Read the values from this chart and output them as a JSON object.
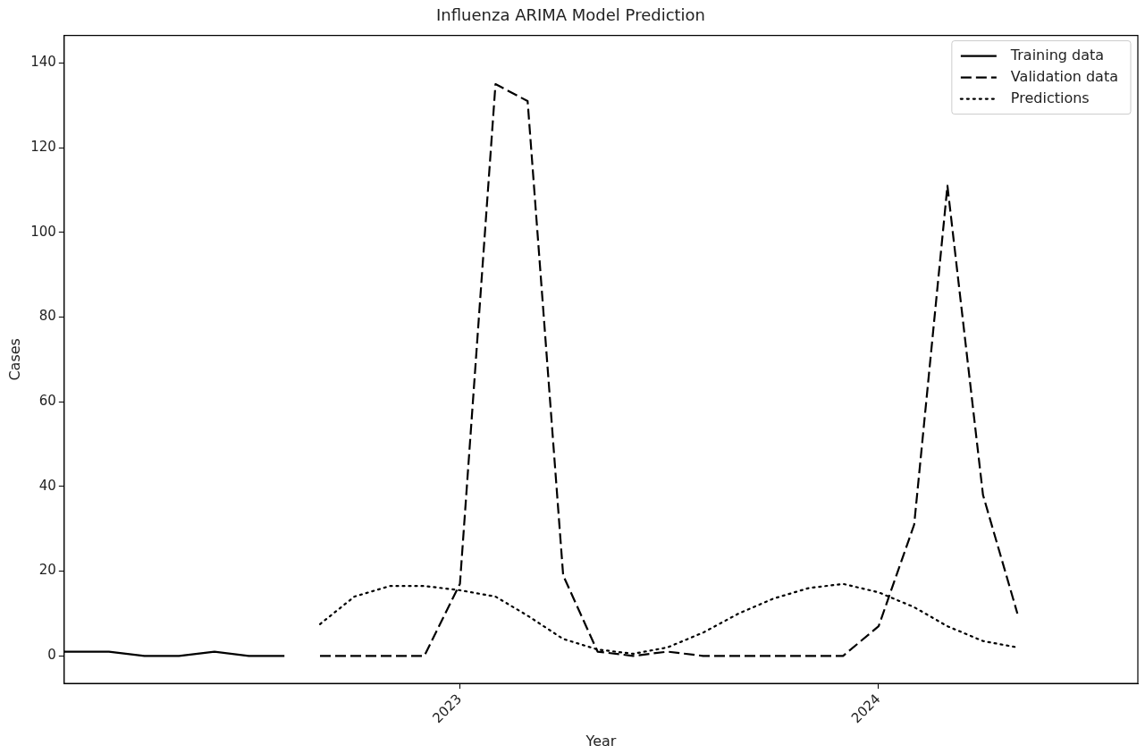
{
  "chart_data": {
    "type": "line",
    "title": "Influenza ARIMA Model Prediction",
    "xlabel": "Year",
    "ylabel": "Cases",
    "xlim": [
      "2022-01-21",
      "2024-08-14"
    ],
    "xticks": [
      {
        "value": "2023-01-01",
        "label": "2023"
      },
      {
        "value": "2024-01-01",
        "label": "2024"
      }
    ],
    "ylim": [
      -6.5,
      146.5
    ],
    "yticks": [
      0,
      20,
      40,
      60,
      80,
      100,
      120,
      140
    ],
    "grid": false,
    "legend": "top right",
    "marker": "none",
    "series": [
      {
        "name": "Training data",
        "color": "#000000",
        "line_style": "solid",
        "x": [
          "2022-01-21",
          "2022-02-01",
          "2022-03-01",
          "2022-04-01",
          "2022-05-01",
          "2022-06-01",
          "2022-07-01",
          "2022-08-01"
        ],
        "values": [
          1,
          1,
          1,
          0,
          0,
          1,
          0,
          0
        ]
      },
      {
        "name": "Validation data",
        "color": "#000000",
        "line_style": "dashed",
        "x": [
          "2022-09-01",
          "2022-10-01",
          "2022-11-01",
          "2022-12-01",
          "2023-01-01",
          "2023-02-01",
          "2023-03-01",
          "2023-04-01",
          "2023-05-01",
          "2023-06-01",
          "2023-07-01",
          "2023-08-01",
          "2023-09-01",
          "2023-10-01",
          "2023-11-01",
          "2023-12-01",
          "2024-01-01",
          "2024-02-01",
          "2024-03-01",
          "2024-04-01",
          "2024-05-01"
        ],
        "values": [
          0,
          0,
          0,
          0,
          17,
          135,
          131,
          19,
          1,
          0,
          1,
          0,
          0,
          0,
          0,
          0,
          7,
          31,
          111,
          38,
          10
        ]
      },
      {
        "name": "Predictions",
        "color": "#000000",
        "line_style": "dotted",
        "x": [
          "2022-09-01",
          "2022-10-01",
          "2022-11-01",
          "2022-12-01",
          "2023-01-01",
          "2023-02-01",
          "2023-03-01",
          "2023-04-01",
          "2023-05-01",
          "2023-06-01",
          "2023-07-01",
          "2023-08-01",
          "2023-09-01",
          "2023-10-01",
          "2023-11-01",
          "2023-12-01",
          "2024-01-01",
          "2024-02-01",
          "2024-03-01",
          "2024-04-01",
          "2024-05-01"
        ],
        "values": [
          7.5,
          14,
          16.5,
          16.5,
          15.5,
          14,
          9.5,
          4,
          1.5,
          0.5,
          2,
          5.5,
          10,
          13.5,
          16,
          17,
          15,
          11.5,
          7,
          3.5,
          2
        ]
      }
    ]
  }
}
